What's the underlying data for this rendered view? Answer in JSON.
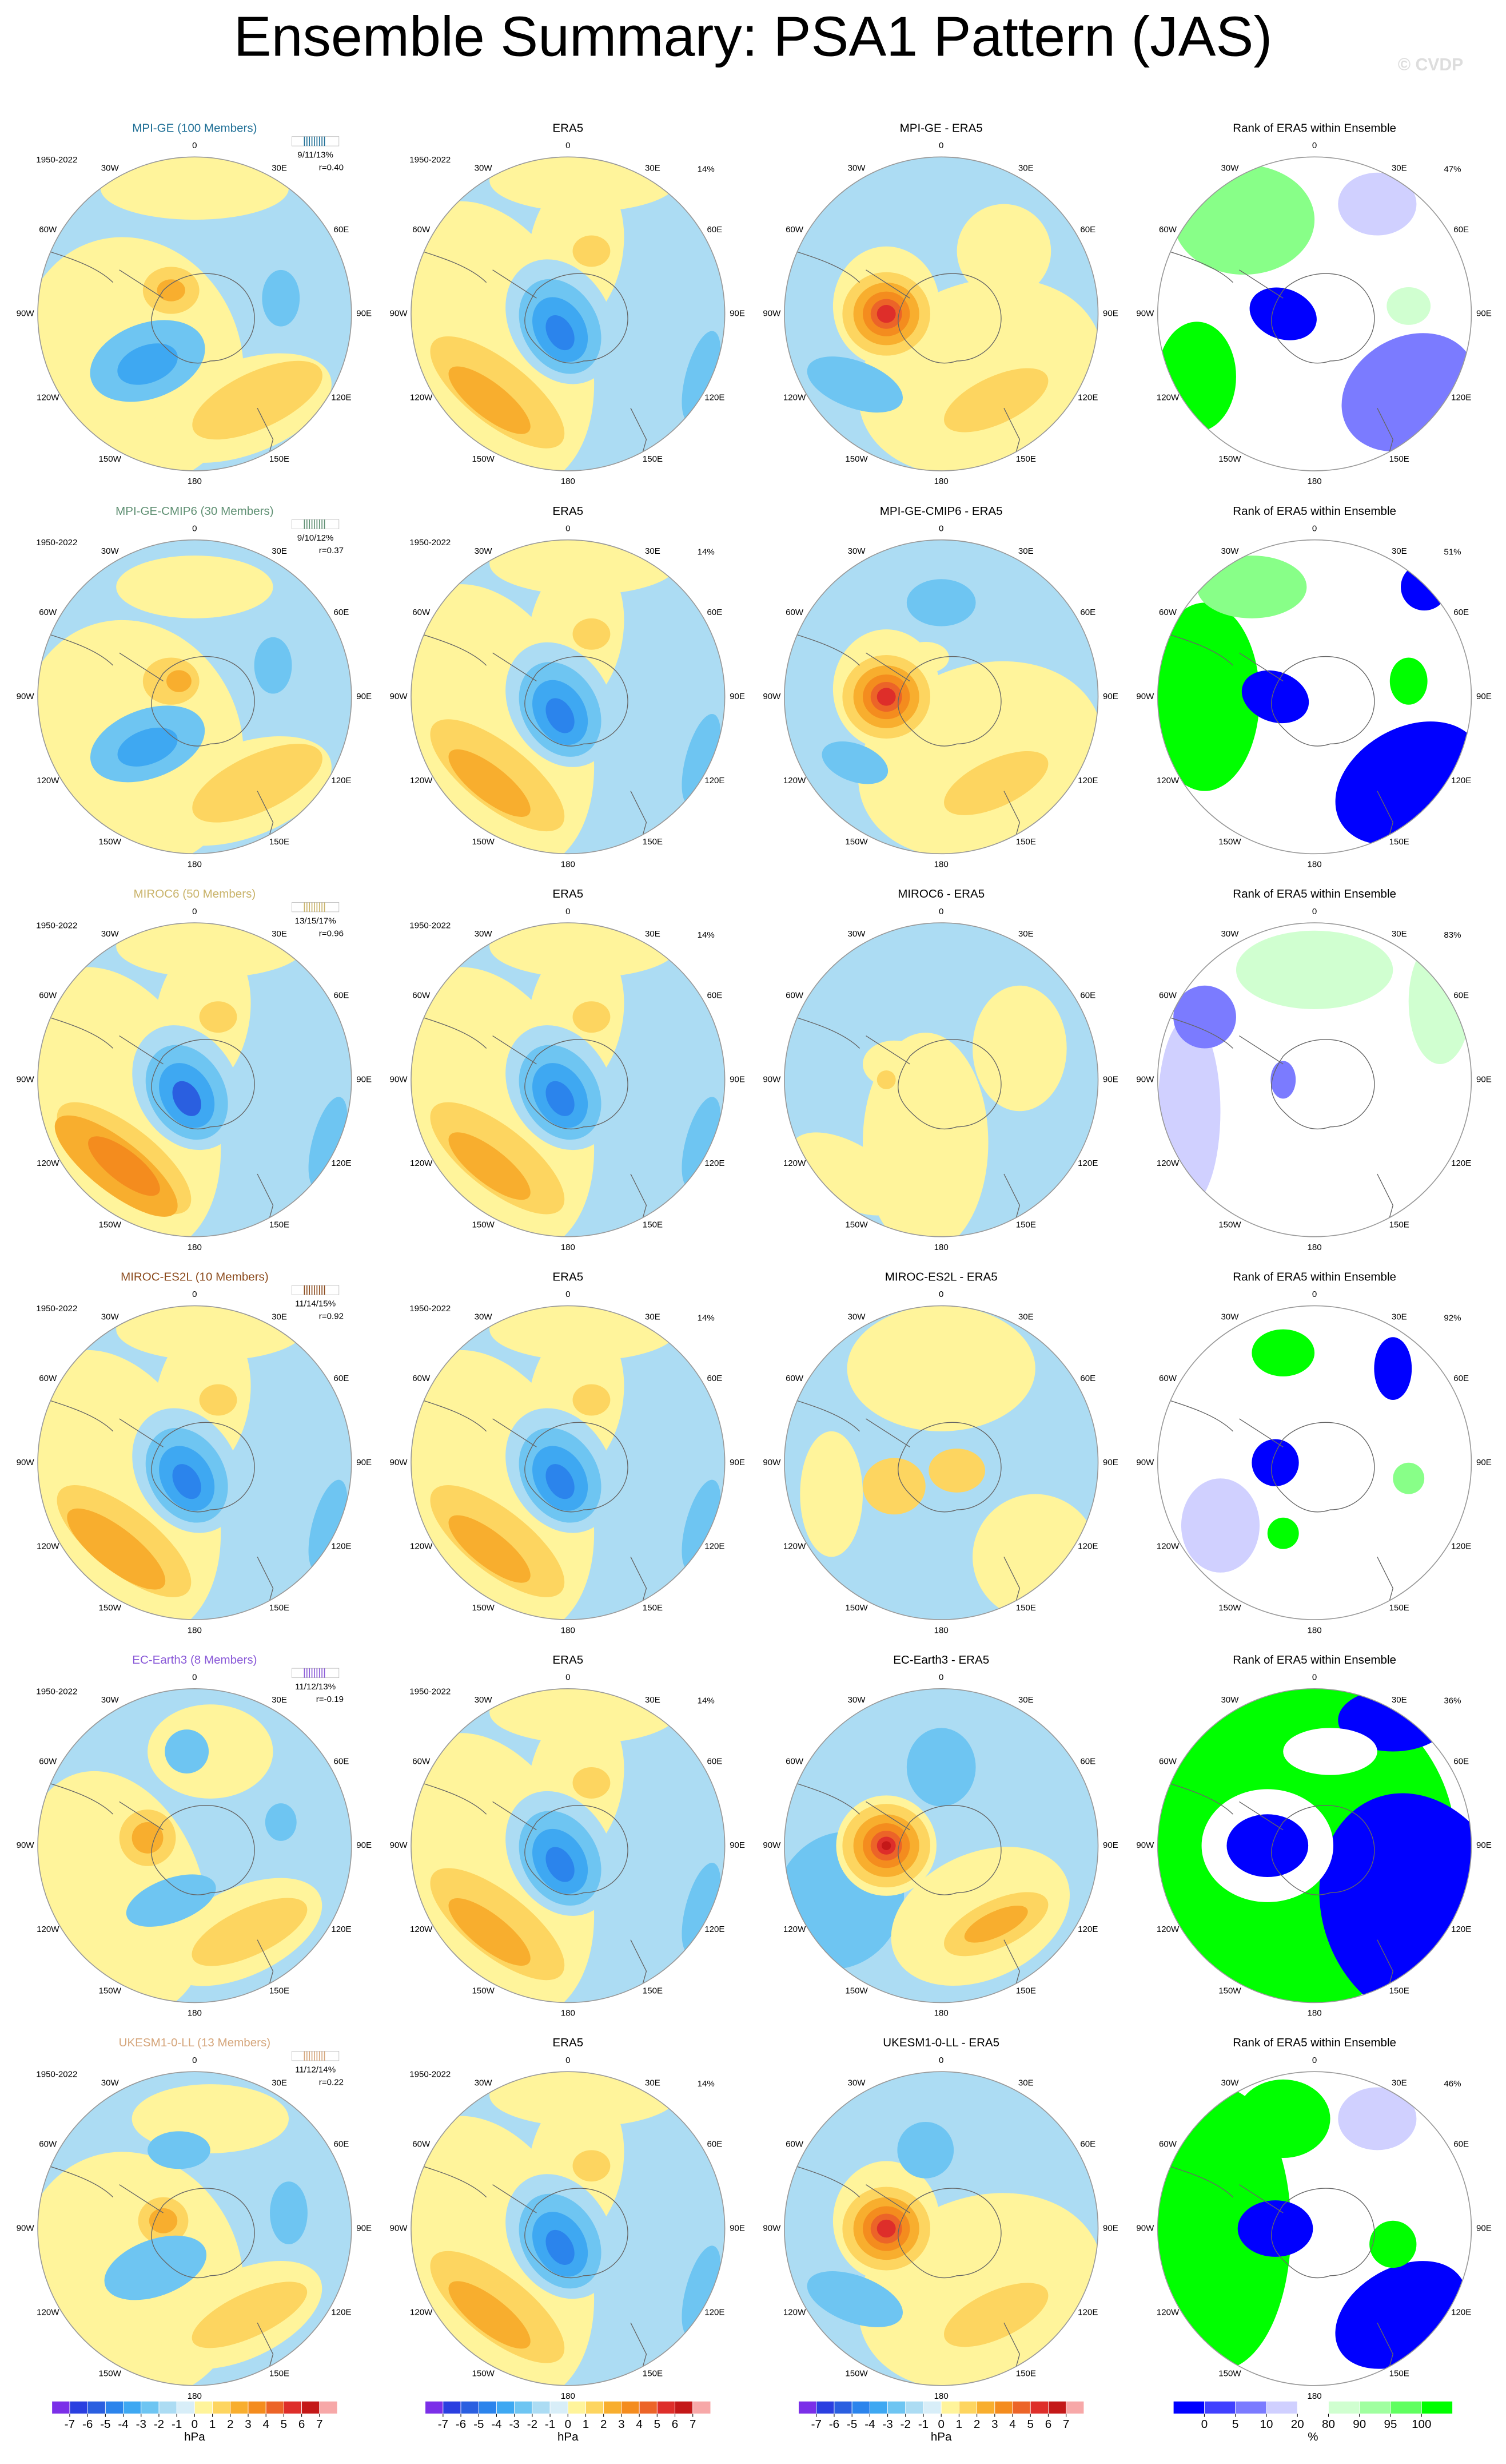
{
  "title": "Ensemble Summary: PSA1 Pattern (JAS)",
  "watermark": "© CVDP",
  "longitude_labels": [
    "0",
    "30E",
    "60E",
    "90E",
    "120E",
    "150E",
    "180",
    "150W",
    "120W",
    "90W",
    "60W",
    "30W"
  ],
  "rows": [
    {
      "model": "MPI-GE (100 Members)",
      "color": "#1f6f96",
      "period": "1950-2022",
      "stats": "9/11/13%",
      "r": "r=0.40",
      "era5_title": "ERA5",
      "era5_period": "1950-2022",
      "era5_percent": "14%",
      "diff_title": "MPI-GE - ERA5",
      "rank_title": "Rank of ERA5 within Ensemble",
      "rank_percent": "47%"
    },
    {
      "model": "MPI-GE-CMIP6 (30 Members)",
      "color": "#5e8f72",
      "period": "1950-2022",
      "stats": "9/10/12%",
      "r": "r=0.37",
      "era5_title": "ERA5",
      "era5_period": "1950-2022",
      "era5_percent": "14%",
      "diff_title": "MPI-GE-CMIP6 - ERA5",
      "rank_title": "Rank of ERA5 within Ensemble",
      "rank_percent": "51%"
    },
    {
      "model": "MIROC6 (50 Members)",
      "color": "#c9b36a",
      "period": "1950-2022",
      "stats": "13/15/17%",
      "r": "r=0.96",
      "era5_title": "ERA5",
      "era5_period": "1950-2022",
      "era5_percent": "14%",
      "diff_title": "MIROC6 - ERA5",
      "rank_title": "Rank of ERA5 within Ensemble",
      "rank_percent": "83%"
    },
    {
      "model": "MIROC-ES2L (10 Members)",
      "color": "#8b4a1c",
      "period": "1950-2022",
      "stats": "11/14/15%",
      "r": "r=0.92",
      "era5_title": "ERA5",
      "era5_period": "1950-2022",
      "era5_percent": "14%",
      "diff_title": "MIROC-ES2L - ERA5",
      "rank_title": "Rank of ERA5 within Ensemble",
      "rank_percent": "92%"
    },
    {
      "model": "EC-Earth3 (8 Members)",
      "color": "#8a5ad8",
      "period": "1950-2022",
      "stats": "11/12/13%",
      "r": "r=-0.19",
      "era5_title": "ERA5",
      "era5_period": "1950-2022",
      "era5_percent": "14%",
      "diff_title": "EC-Earth3 - ERA5",
      "rank_title": "Rank of ERA5 within Ensemble",
      "rank_percent": "36%"
    },
    {
      "model": "UKESM1-0-LL (13 Members)",
      "color": "#d5a67c",
      "period": "1950-2022",
      "stats": "11/12/14%",
      "r": "r=0.22",
      "era5_title": "ERA5",
      "era5_period": "1950-2022",
      "era5_percent": "14%",
      "diff_title": "UKESM1-0-LL - ERA5",
      "rank_title": "Rank of ERA5 within Ensemble",
      "rank_percent": "46%"
    }
  ],
  "colorbars": [
    {
      "ticks": [
        -7,
        -6,
        -5,
        -4,
        -3,
        -2,
        -1,
        0,
        1,
        2,
        3,
        4,
        5,
        6,
        7
      ],
      "unit": "hPa"
    },
    {
      "ticks": [
        -7,
        -6,
        -5,
        -4,
        -3,
        -2,
        -1,
        0,
        1,
        2,
        3,
        4,
        5,
        6,
        7
      ],
      "unit": "hPa"
    },
    {
      "ticks": [
        -7,
        -6,
        -5,
        -4,
        -3,
        -2,
        -1,
        0,
        1,
        2,
        3,
        4,
        5,
        6,
        7
      ],
      "unit": "hPa"
    },
    {
      "ticks": [
        0,
        5,
        10,
        20,
        80,
        90,
        95,
        100
      ],
      "unit": "%"
    }
  ]
}
